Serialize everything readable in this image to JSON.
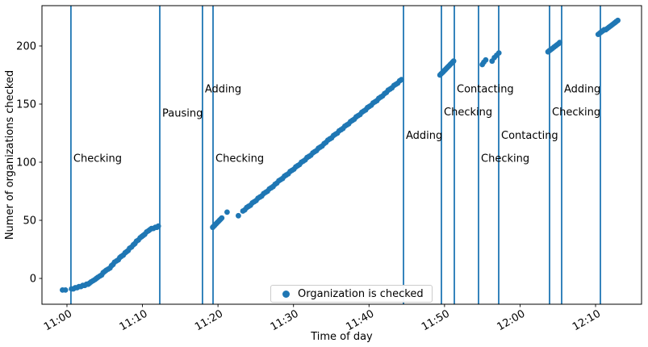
{
  "chart_data": {
    "type": "scatter",
    "title": "",
    "xlabel": "Time of day",
    "ylabel": "Numer of organizations checked",
    "accent_color": "#1f77b4",
    "x_unit": "minutes after 11:00",
    "xlim": [
      -3.31,
      76.09
    ],
    "ylim": [
      -22.2,
      234.7
    ],
    "grid": false,
    "tick_rotation": 30,
    "x_axis": {
      "ticks": [
        {
          "t": 0,
          "label": "11:00"
        },
        {
          "t": 10,
          "label": "11:10"
        },
        {
          "t": 20,
          "label": "11:20"
        },
        {
          "t": 30,
          "label": "11:30"
        },
        {
          "t": 40,
          "label": "11:40"
        },
        {
          "t": 50,
          "label": "11:50"
        },
        {
          "t": 60,
          "label": "12:00"
        },
        {
          "t": 70,
          "label": "12:10"
        }
      ]
    },
    "y_axis": {
      "ticks": [
        {
          "v": 0,
          "label": "0"
        },
        {
          "v": 50,
          "label": "50"
        },
        {
          "v": 100,
          "label": "100"
        },
        {
          "v": 150,
          "label": "150"
        },
        {
          "v": 200,
          "label": "200"
        }
      ]
    },
    "legend": {
      "label": "Organization is checked",
      "position": "lower center"
    },
    "vlines": [
      {
        "t": 0.53,
        "label": "Checking",
        "label_v": 103
      },
      {
        "t": 12.29,
        "label": "Pausing",
        "label_v": 142
      },
      {
        "t": 17.95,
        "label": "Adding",
        "label_v": 163
      },
      {
        "t": 19.34,
        "label": "Checking",
        "label_v": 103
      },
      {
        "t": 44.57,
        "label": "Adding",
        "label_v": 123
      },
      {
        "t": 49.59,
        "label": "Checking",
        "label_v": 143
      },
      {
        "t": 51.3,
        "label": "Contacting",
        "label_v": 163
      },
      {
        "t": 54.5,
        "label": "Checking",
        "label_v": 103
      },
      {
        "t": 57.17,
        "label": "Contacting",
        "label_v": 123
      },
      {
        "t": 63.91,
        "label": "Checking",
        "label_v": 143
      },
      {
        "t": 65.51,
        "label": "Adding",
        "label_v": 163
      },
      {
        "t": 70.64,
        "label": "",
        "label_v": 0
      }
    ],
    "series": [
      {
        "name": "Organization is checked",
        "color": "#1f77b4",
        "marker": "circle",
        "points": [
          [
            -0.6,
            -10
          ],
          [
            -0.2,
            -10
          ],
          [
            0.6,
            -9
          ],
          [
            0.85,
            -9
          ],
          [
            1.1,
            -8
          ],
          [
            1.35,
            -8
          ],
          [
            1.6,
            -7
          ],
          [
            1.85,
            -7
          ],
          [
            2.1,
            -6
          ],
          [
            2.35,
            -6
          ],
          [
            2.6,
            -5
          ],
          [
            2.8,
            -5
          ],
          [
            3.0,
            -4
          ],
          [
            3.2,
            -3
          ],
          [
            3.45,
            -2
          ],
          [
            3.7,
            -1
          ],
          [
            3.9,
            0
          ],
          [
            4.1,
            1
          ],
          [
            4.35,
            2
          ],
          [
            4.6,
            3
          ],
          [
            4.8,
            5
          ],
          [
            5.0,
            6
          ],
          [
            5.2,
            7
          ],
          [
            5.45,
            8
          ],
          [
            5.7,
            9
          ],
          [
            5.9,
            11
          ],
          [
            6.1,
            12
          ],
          [
            6.3,
            14
          ],
          [
            6.55,
            15
          ],
          [
            6.8,
            16
          ],
          [
            7.0,
            18
          ],
          [
            7.2,
            19
          ],
          [
            7.45,
            20
          ],
          [
            7.7,
            22
          ],
          [
            7.9,
            23
          ],
          [
            8.1,
            24
          ],
          [
            8.3,
            26
          ],
          [
            8.55,
            27
          ],
          [
            8.8,
            29
          ],
          [
            9.0,
            30
          ],
          [
            9.2,
            32
          ],
          [
            9.45,
            33
          ],
          [
            9.7,
            35
          ],
          [
            9.9,
            36
          ],
          [
            10.1,
            37
          ],
          [
            10.3,
            38
          ],
          [
            10.55,
            40
          ],
          [
            10.8,
            41
          ],
          [
            11.0,
            42
          ],
          [
            11.2,
            43
          ],
          [
            11.45,
            43
          ],
          [
            11.7,
            44
          ],
          [
            11.9,
            44
          ],
          [
            12.1,
            45
          ],
          [
            19.3,
            44
          ],
          [
            19.45,
            45
          ],
          [
            19.6,
            46
          ],
          [
            19.75,
            47
          ],
          [
            19.9,
            48
          ],
          [
            20.05,
            49
          ],
          [
            20.2,
            50
          ],
          [
            20.35,
            51
          ],
          [
            20.5,
            52
          ],
          [
            21.2,
            57
          ],
          [
            22.7,
            54
          ],
          [
            23.3,
            58
          ],
          [
            23.55,
            59
          ],
          [
            23.8,
            61
          ],
          [
            24.05,
            62
          ],
          [
            24.3,
            63
          ],
          [
            24.55,
            65
          ],
          [
            24.8,
            66
          ],
          [
            25.05,
            67
          ],
          [
            25.3,
            69
          ],
          [
            25.55,
            70
          ],
          [
            25.8,
            71
          ],
          [
            26.05,
            73
          ],
          [
            26.3,
            74
          ],
          [
            26.55,
            75
          ],
          [
            26.8,
            77
          ],
          [
            27.05,
            78
          ],
          [
            27.3,
            79
          ],
          [
            27.55,
            81
          ],
          [
            27.8,
            82
          ],
          [
            28.05,
            84
          ],
          [
            28.3,
            85
          ],
          [
            28.55,
            86
          ],
          [
            28.8,
            88
          ],
          [
            29.05,
            89
          ],
          [
            29.3,
            90
          ],
          [
            29.55,
            92
          ],
          [
            29.8,
            93
          ],
          [
            30.05,
            94
          ],
          [
            30.3,
            96
          ],
          [
            30.55,
            97
          ],
          [
            30.8,
            98
          ],
          [
            31.05,
            100
          ],
          [
            31.3,
            101
          ],
          [
            31.55,
            102
          ],
          [
            31.8,
            104
          ],
          [
            32.05,
            105
          ],
          [
            32.3,
            106
          ],
          [
            32.55,
            108
          ],
          [
            32.8,
            109
          ],
          [
            33.05,
            110
          ],
          [
            33.3,
            112
          ],
          [
            33.55,
            113
          ],
          [
            33.8,
            114
          ],
          [
            34.05,
            116
          ],
          [
            34.3,
            117
          ],
          [
            34.55,
            119
          ],
          [
            34.8,
            120
          ],
          [
            35.05,
            121
          ],
          [
            35.3,
            123
          ],
          [
            35.55,
            124
          ],
          [
            35.8,
            125
          ],
          [
            36.05,
            127
          ],
          [
            36.3,
            128
          ],
          [
            36.55,
            129
          ],
          [
            36.8,
            131
          ],
          [
            37.05,
            132
          ],
          [
            37.3,
            133
          ],
          [
            37.55,
            135
          ],
          [
            37.8,
            136
          ],
          [
            38.05,
            137
          ],
          [
            38.3,
            139
          ],
          [
            38.55,
            140
          ],
          [
            38.8,
            141
          ],
          [
            39.05,
            143
          ],
          [
            39.3,
            144
          ],
          [
            39.55,
            145
          ],
          [
            39.8,
            147
          ],
          [
            40.05,
            148
          ],
          [
            40.3,
            149
          ],
          [
            40.55,
            151
          ],
          [
            40.8,
            152
          ],
          [
            41.05,
            153
          ],
          [
            41.3,
            155
          ],
          [
            41.55,
            156
          ],
          [
            41.8,
            157
          ],
          [
            42.05,
            159
          ],
          [
            42.3,
            160
          ],
          [
            42.55,
            162
          ],
          [
            42.8,
            163
          ],
          [
            43.05,
            164
          ],
          [
            43.3,
            166
          ],
          [
            43.55,
            167
          ],
          [
            43.8,
            168
          ],
          [
            44.05,
            170
          ],
          [
            44.3,
            171
          ],
          [
            49.4,
            175
          ],
          [
            49.55,
            176
          ],
          [
            49.7,
            177
          ],
          [
            49.85,
            178
          ],
          [
            50.0,
            179
          ],
          [
            50.15,
            180
          ],
          [
            50.3,
            181
          ],
          [
            50.45,
            182
          ],
          [
            50.6,
            183
          ],
          [
            50.75,
            184
          ],
          [
            50.9,
            185
          ],
          [
            51.05,
            186
          ],
          [
            51.2,
            187
          ],
          [
            55.0,
            184
          ],
          [
            55.2,
            186
          ],
          [
            55.45,
            188
          ],
          [
            56.3,
            187
          ],
          [
            56.6,
            190
          ],
          [
            56.9,
            192
          ],
          [
            57.2,
            194
          ],
          [
            63.7,
            195
          ],
          [
            63.9,
            196
          ],
          [
            64.1,
            197
          ],
          [
            64.3,
            198
          ],
          [
            64.5,
            199
          ],
          [
            64.7,
            200
          ],
          [
            64.9,
            201
          ],
          [
            65.1,
            202
          ],
          [
            65.25,
            203
          ],
          [
            70.35,
            210
          ],
          [
            70.55,
            211
          ],
          [
            70.75,
            212
          ],
          [
            70.95,
            213
          ],
          [
            71.15,
            214
          ],
          [
            71.35,
            214
          ],
          [
            71.55,
            215
          ],
          [
            71.75,
            216
          ],
          [
            71.95,
            217
          ],
          [
            72.15,
            218
          ],
          [
            72.35,
            219
          ],
          [
            72.55,
            220
          ],
          [
            72.75,
            221
          ],
          [
            72.95,
            222
          ]
        ]
      }
    ]
  }
}
